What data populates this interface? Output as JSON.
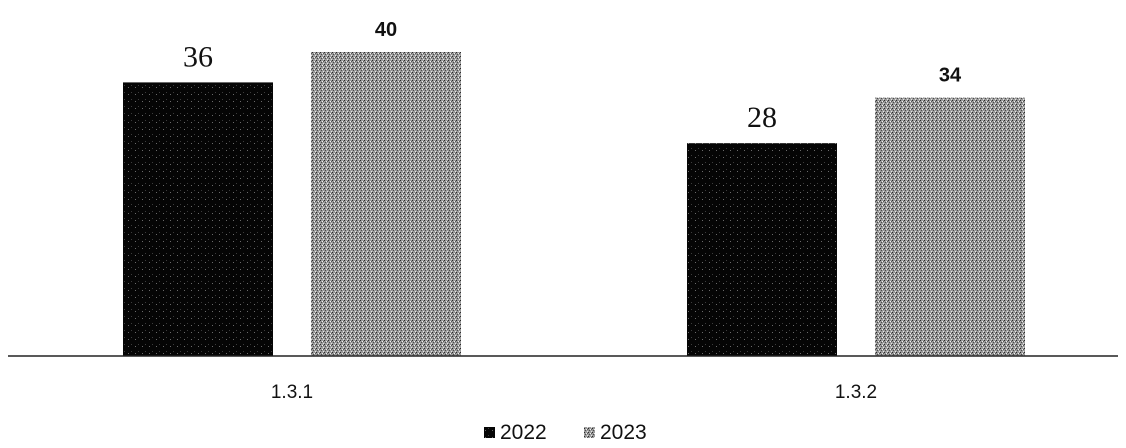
{
  "chart_data": {
    "type": "bar",
    "title": "",
    "xlabel": "",
    "ylabel": "",
    "categories": [
      "1.3.1",
      "1.3.2"
    ],
    "series": [
      {
        "name": "2022",
        "values": [
          36,
          28
        ],
        "color": "#0a0a0a"
      },
      {
        "name": "2023",
        "values": [
          40,
          34
        ],
        "color": "#8c8c8c"
      }
    ],
    "data_labels": [
      [
        "36",
        "28"
      ],
      [
        "40",
        "34"
      ]
    ],
    "ylim": [
      0,
      40
    ],
    "grid": false,
    "legend_position": "bottom"
  }
}
